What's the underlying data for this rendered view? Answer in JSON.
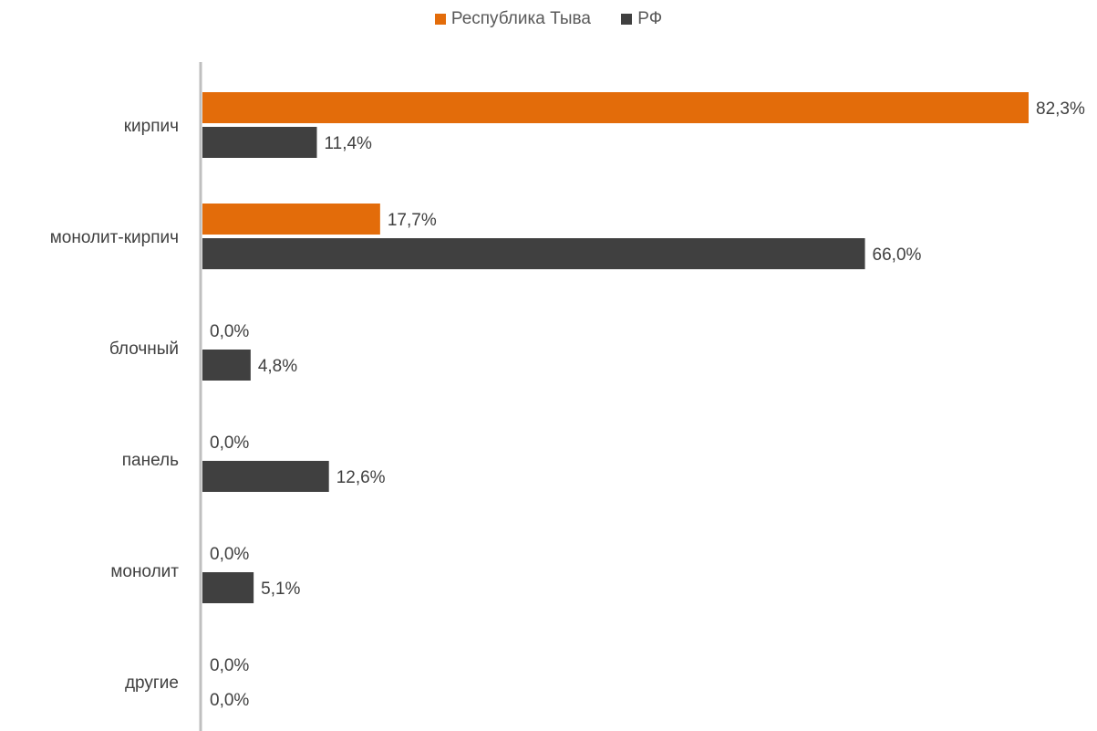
{
  "chart_data": {
    "type": "bar",
    "orientation": "horizontal",
    "categories": [
      "кирпич",
      "монолит-кирпич",
      "блочный",
      "панель",
      "монолит",
      "другие"
    ],
    "series": [
      {
        "name": "Республика Тыва",
        "color": "#E36C0A",
        "values": [
          82.3,
          17.7,
          0.0,
          0.0,
          0.0,
          0.0
        ],
        "labels": [
          "82,3%",
          "17,7%",
          "0,0%",
          "0,0%",
          "0,0%",
          "0,0%"
        ]
      },
      {
        "name": "РФ",
        "color": "#404040",
        "values": [
          11.4,
          66.0,
          4.8,
          12.6,
          5.1,
          0.0
        ],
        "labels": [
          "11,4%",
          "66,0%",
          "4,8%",
          "12,6%",
          "5,1%",
          "0,0%"
        ]
      }
    ],
    "xlim": [
      0,
      82.3
    ],
    "legend_position": "top",
    "grid": false
  }
}
